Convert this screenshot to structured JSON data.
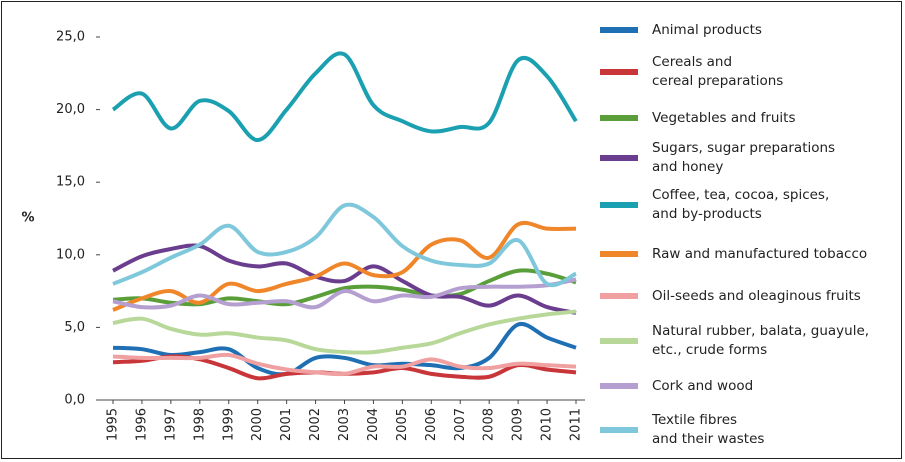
{
  "chart_data": {
    "type": "line",
    "y_label": "%",
    "x": [
      "1995",
      "1996",
      "1997",
      "1998",
      "1999",
      "2000",
      "2001",
      "2002",
      "2003",
      "2004",
      "2005",
      "2006",
      "2007",
      "2008",
      "2009",
      "2010",
      "2011"
    ],
    "ylim": [
      0,
      25
    ],
    "yticks": [
      {
        "value": 0,
        "label": "0,0"
      },
      {
        "value": 5,
        "label": "5,0"
      },
      {
        "value": 10,
        "label": "10,0"
      },
      {
        "value": 15,
        "label": "15,0"
      },
      {
        "value": 20,
        "label": "20,0"
      },
      {
        "value": 25,
        "label": "25,0"
      }
    ],
    "series": [
      {
        "name": "Animal products",
        "color": "#1f6fb4",
        "values": [
          3.6,
          3.5,
          3.1,
          3.3,
          3.5,
          2.2,
          1.8,
          2.9,
          2.9,
          2.4,
          2.5,
          2.4,
          2.2,
          2.9,
          5.2,
          4.3,
          3.6
        ]
      },
      {
        "name": "Cereals and\ncereal preparations",
        "color": "#c8363a",
        "values": [
          2.6,
          2.7,
          3.0,
          2.8,
          2.2,
          1.5,
          1.8,
          1.9,
          1.8,
          1.9,
          2.2,
          1.8,
          1.6,
          1.6,
          2.4,
          2.1,
          1.9
        ]
      },
      {
        "name": "Vegetables and fruits",
        "color": "#5a9e3a",
        "values": [
          6.9,
          7.0,
          6.7,
          6.6,
          7.0,
          6.8,
          6.6,
          7.1,
          7.7,
          7.8,
          7.6,
          7.2,
          7.3,
          8.2,
          8.9,
          8.7,
          8.1
        ]
      },
      {
        "name": "Sugars, sugar preparations\nand honey",
        "color": "#6a3d8f",
        "values": [
          8.9,
          9.9,
          10.4,
          10.6,
          9.6,
          9.2,
          9.4,
          8.5,
          8.2,
          9.2,
          8.2,
          7.2,
          7.1,
          6.5,
          7.2,
          6.4,
          6.0
        ]
      },
      {
        "name": "Coffee, tea, cocoa, spices,\nand by-products",
        "color": "#1aa0b0",
        "values": [
          20.0,
          21.1,
          18.7,
          20.6,
          19.9,
          17.9,
          20.0,
          22.5,
          23.8,
          20.3,
          19.2,
          18.5,
          18.8,
          19.1,
          23.4,
          22.3,
          19.2
        ]
      },
      {
        "name": "Raw and manufactured tobacco",
        "color": "#f0862a",
        "values": [
          6.2,
          7.0,
          7.5,
          6.7,
          8.0,
          7.5,
          8.0,
          8.5,
          9.4,
          8.6,
          8.8,
          10.7,
          11.0,
          9.8,
          12.1,
          11.8,
          11.8
        ]
      },
      {
        "name": "Oil-seeds and oleaginous fruits",
        "color": "#f0a0a0",
        "values": [
          3.0,
          2.9,
          2.9,
          2.9,
          3.1,
          2.5,
          2.1,
          1.9,
          1.8,
          2.3,
          2.3,
          2.8,
          2.3,
          2.2,
          2.5,
          2.4,
          2.3
        ]
      },
      {
        "name": "Natural rubber, balata, guayule,\netc., crude forms",
        "color": "#b8d89a",
        "values": [
          5.3,
          5.6,
          4.9,
          4.5,
          4.6,
          4.3,
          4.1,
          3.5,
          3.3,
          3.3,
          3.6,
          3.9,
          4.6,
          5.2,
          5.6,
          5.9,
          6.1
        ]
      },
      {
        "name": "Cork and wood",
        "color": "#b49fd0",
        "values": [
          6.8,
          6.4,
          6.5,
          7.2,
          6.6,
          6.7,
          6.8,
          6.4,
          7.5,
          6.8,
          7.2,
          7.1,
          7.7,
          7.8,
          7.8,
          7.9,
          8.3
        ]
      },
      {
        "name": "Textile fibres\nand their wastes",
        "color": "#7fc8dc",
        "values": [
          8.0,
          8.8,
          9.8,
          10.7,
          12.0,
          10.2,
          10.2,
          11.2,
          13.4,
          12.6,
          10.6,
          9.6,
          9.3,
          9.4,
          11.0,
          8.0,
          8.7
        ]
      }
    ]
  }
}
